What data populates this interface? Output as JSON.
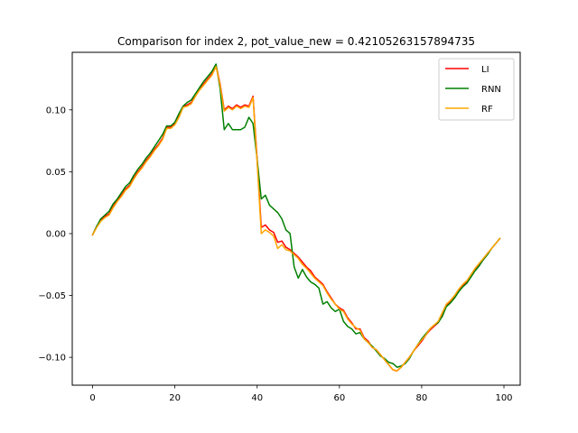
{
  "chart_data": {
    "type": "line",
    "title": "Comparison for index 2, pot_value_new = 0.42105263157894735",
    "xlabel": "",
    "ylabel": "",
    "xlim": [
      -4.95,
      103.95
    ],
    "ylim": [
      -0.1225,
      0.1465
    ],
    "xticks": [
      0,
      20,
      40,
      60,
      80,
      100
    ],
    "xtick_labels": [
      "0",
      "20",
      "40",
      "60",
      "80",
      "100"
    ],
    "yticks": [
      -0.1,
      -0.05,
      0.0,
      0.05,
      0.1
    ],
    "ytick_labels": [
      "−0.10",
      "−0.05",
      "0.00",
      "0.05",
      "0.10"
    ],
    "grid": false,
    "legend_position": "top-right",
    "series": [
      {
        "name": "LI",
        "color": "#ff0000",
        "x": [
          0,
          1,
          2,
          3,
          4,
          5,
          6,
          7,
          8,
          9,
          10,
          11,
          12,
          13,
          14,
          15,
          16,
          17,
          18,
          19,
          20,
          21,
          22,
          23,
          24,
          25,
          26,
          27,
          28,
          29,
          30,
          31,
          32,
          33,
          34,
          35,
          36,
          37,
          38,
          39,
          40,
          41,
          42,
          43,
          44,
          45,
          46,
          47,
          48,
          49,
          50,
          51,
          52,
          53,
          54,
          55,
          56,
          57,
          58,
          59,
          60,
          61,
          62,
          63,
          64,
          65,
          66,
          67,
          68,
          69,
          70,
          71,
          72,
          73,
          74,
          75,
          76,
          77,
          78,
          79,
          80,
          81,
          82,
          83,
          84,
          85,
          86,
          87,
          88,
          89,
          90,
          91,
          92,
          93,
          94,
          95,
          96,
          97,
          98,
          99
        ],
        "y": [
          -0.001,
          0.006,
          0.011,
          0.014,
          0.016,
          0.022,
          0.027,
          0.031,
          0.036,
          0.039,
          0.045,
          0.05,
          0.054,
          0.059,
          0.063,
          0.068,
          0.072,
          0.077,
          0.086,
          0.086,
          0.089,
          0.095,
          0.103,
          0.104,
          0.106,
          0.112,
          0.117,
          0.121,
          0.125,
          0.129,
          0.136,
          0.121,
          0.1,
          0.103,
          0.101,
          0.104,
          0.102,
          0.104,
          0.103,
          0.111,
          0.06,
          0.005,
          0.007,
          0.003,
          0.001,
          -0.007,
          -0.006,
          -0.011,
          -0.013,
          -0.016,
          -0.019,
          -0.023,
          -0.027,
          -0.03,
          -0.035,
          -0.038,
          -0.041,
          -0.047,
          -0.052,
          -0.057,
          -0.06,
          -0.062,
          -0.068,
          -0.072,
          -0.077,
          -0.077,
          -0.084,
          -0.087,
          -0.092,
          -0.094,
          -0.098,
          -0.102,
          -0.106,
          -0.11,
          -0.111,
          -0.108,
          -0.104,
          -0.1,
          -0.095,
          -0.091,
          -0.087,
          -0.082,
          -0.078,
          -0.075,
          -0.072,
          -0.065,
          -0.058,
          -0.055,
          -0.051,
          -0.046,
          -0.042,
          -0.039,
          -0.034,
          -0.029,
          -0.025,
          -0.021,
          -0.016,
          -0.012,
          -0.008,
          -0.004
        ]
      },
      {
        "name": "RNN",
        "color": "#008000",
        "x": [
          0,
          1,
          2,
          3,
          4,
          5,
          6,
          7,
          8,
          9,
          10,
          11,
          12,
          13,
          14,
          15,
          16,
          17,
          18,
          19,
          20,
          21,
          22,
          23,
          24,
          25,
          26,
          27,
          28,
          29,
          30,
          31,
          32,
          33,
          34,
          35,
          36,
          37,
          38,
          39,
          40,
          41,
          42,
          43,
          44,
          45,
          46,
          47,
          48,
          49,
          50,
          51,
          52,
          53,
          54,
          55,
          56,
          57,
          58,
          59,
          60,
          61,
          62,
          63,
          64,
          65,
          66,
          67,
          68,
          69,
          70,
          71,
          72,
          73,
          74,
          75,
          76,
          77,
          78,
          79,
          80,
          81,
          82,
          83,
          84,
          85,
          86,
          87,
          88,
          89,
          90,
          91,
          92,
          93,
          94,
          95,
          96,
          97,
          98,
          99
        ],
        "y": [
          -0.001,
          0.006,
          0.012,
          0.015,
          0.018,
          0.024,
          0.028,
          0.033,
          0.038,
          0.041,
          0.047,
          0.052,
          0.056,
          0.061,
          0.065,
          0.07,
          0.075,
          0.08,
          0.087,
          0.087,
          0.09,
          0.097,
          0.103,
          0.106,
          0.108,
          0.113,
          0.118,
          0.123,
          0.127,
          0.131,
          0.137,
          0.117,
          0.084,
          0.089,
          0.084,
          0.084,
          0.084,
          0.086,
          0.094,
          0.089,
          0.06,
          0.028,
          0.031,
          0.023,
          0.02,
          0.017,
          0.012,
          0.003,
          0.0,
          -0.027,
          -0.036,
          -0.029,
          -0.035,
          -0.039,
          -0.041,
          -0.044,
          -0.057,
          -0.055,
          -0.06,
          -0.063,
          -0.061,
          -0.071,
          -0.075,
          -0.077,
          -0.081,
          -0.08,
          -0.085,
          -0.088,
          -0.091,
          -0.095,
          -0.099,
          -0.101,
          -0.104,
          -0.105,
          -0.108,
          -0.107,
          -0.105,
          -0.101,
          -0.095,
          -0.09,
          -0.085,
          -0.081,
          -0.077,
          -0.074,
          -0.072,
          -0.067,
          -0.059,
          -0.056,
          -0.052,
          -0.047,
          -0.043,
          -0.04,
          -0.035,
          -0.03,
          -0.026,
          -0.021,
          -0.017,
          -0.012,
          -0.008,
          -0.004
        ]
      },
      {
        "name": "RF",
        "color": "#ffa500",
        "x": [
          0,
          1,
          2,
          3,
          4,
          5,
          6,
          7,
          8,
          9,
          10,
          11,
          12,
          13,
          14,
          15,
          16,
          17,
          18,
          19,
          20,
          21,
          22,
          23,
          24,
          25,
          26,
          27,
          28,
          29,
          30,
          31,
          32,
          33,
          34,
          35,
          36,
          37,
          38,
          39,
          40,
          41,
          42,
          43,
          44,
          45,
          46,
          47,
          48,
          49,
          50,
          51,
          52,
          53,
          54,
          55,
          56,
          57,
          58,
          59,
          60,
          61,
          62,
          63,
          64,
          65,
          66,
          67,
          68,
          69,
          70,
          71,
          72,
          73,
          74,
          75,
          76,
          77,
          78,
          79,
          80,
          81,
          82,
          83,
          84,
          85,
          86,
          87,
          88,
          89,
          90,
          91,
          92,
          93,
          94,
          95,
          96,
          97,
          98,
          99
        ],
        "y": [
          -0.001,
          0.005,
          0.01,
          0.013,
          0.015,
          0.021,
          0.026,
          0.03,
          0.035,
          0.038,
          0.044,
          0.049,
          0.053,
          0.058,
          0.062,
          0.067,
          0.071,
          0.076,
          0.085,
          0.085,
          0.088,
          0.094,
          0.102,
          0.103,
          0.105,
          0.111,
          0.116,
          0.12,
          0.124,
          0.128,
          0.135,
          0.12,
          0.099,
          0.102,
          0.1,
          0.103,
          0.101,
          0.103,
          0.102,
          0.11,
          0.058,
          0.0,
          0.003,
          0.001,
          -0.002,
          -0.012,
          -0.009,
          -0.013,
          -0.014,
          -0.017,
          -0.02,
          -0.025,
          -0.028,
          -0.032,
          -0.036,
          -0.039,
          -0.042,
          -0.048,
          -0.053,
          -0.057,
          -0.061,
          -0.063,
          -0.069,
          -0.073,
          -0.076,
          -0.078,
          -0.085,
          -0.088,
          -0.092,
          -0.094,
          -0.098,
          -0.102,
          -0.106,
          -0.11,
          -0.111,
          -0.108,
          -0.104,
          -0.1,
          -0.095,
          -0.09,
          -0.086,
          -0.082,
          -0.077,
          -0.074,
          -0.071,
          -0.064,
          -0.057,
          -0.054,
          -0.05,
          -0.045,
          -0.041,
          -0.038,
          -0.033,
          -0.028,
          -0.024,
          -0.02,
          -0.016,
          -0.012,
          -0.008,
          -0.004
        ]
      }
    ]
  }
}
